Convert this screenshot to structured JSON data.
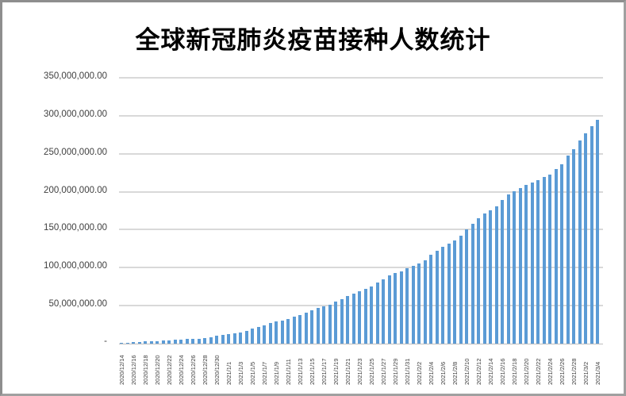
{
  "chart_data": {
    "type": "bar",
    "title": "全球新冠肺炎疫苗接种人数统计",
    "xlabel": "",
    "ylabel": "",
    "legend": null,
    "grid": true,
    "bar_color": "#5B9BD5",
    "gridline_color": "#D9D9D9",
    "axis_line_color": "#BFBFBF",
    "title_color": "#000000",
    "tick_label_color": "#404040",
    "y_axis": {
      "min": 0,
      "max": 350000000,
      "tick_interval": 50000000,
      "tick_labels": [
        "350,000,000.00",
        "300,000,000.00",
        "250,000,000.00",
        "200,000,000.00",
        "150,000,000.00",
        "100,000,000.00",
        "50,000,000.00"
      ],
      "zero_label": "-"
    },
    "x_tick_labels": [
      "2020/12/14",
      "2020/12/16",
      "2020/12/18",
      "2020/12/20",
      "2020/12/22",
      "2020/12/24",
      "2020/12/26",
      "2020/12/28",
      "2020/12/30",
      "2021/1/1",
      "2021/1/3",
      "2021/1/5",
      "2021/1/7",
      "2021/1/9",
      "2021/1/11",
      "2021/1/13",
      "2021/1/15",
      "2021/1/17",
      "2021/1/19",
      "2021/1/21",
      "2021/1/23",
      "2021/1/25",
      "2021/1/27",
      "2021/1/29",
      "2021/1/31",
      "2021/2/2",
      "2021/2/4",
      "2021/2/6",
      "2021/2/8",
      "2021/2/10",
      "2021/2/12",
      "2021/2/14",
      "2021/2/16",
      "2021/2/18",
      "2021/2/20",
      "2021/2/22",
      "2021/2/24",
      "2021/2/26",
      "2021/2/28",
      "2021/3/2",
      "2021/3/4"
    ],
    "categories": [
      "2020/12/14",
      "2020/12/15",
      "2020/12/16",
      "2020/12/17",
      "2020/12/18",
      "2020/12/19",
      "2020/12/20",
      "2020/12/21",
      "2020/12/22",
      "2020/12/23",
      "2020/12/24",
      "2020/12/25",
      "2020/12/26",
      "2020/12/27",
      "2020/12/28",
      "2020/12/29",
      "2020/12/30",
      "2020/12/31",
      "2021/1/1",
      "2021/1/2",
      "2021/1/3",
      "2021/1/4",
      "2021/1/5",
      "2021/1/6",
      "2021/1/7",
      "2021/1/8",
      "2021/1/9",
      "2021/1/10",
      "2021/1/11",
      "2021/1/12",
      "2021/1/13",
      "2021/1/14",
      "2021/1/15",
      "2021/1/16",
      "2021/1/17",
      "2021/1/18",
      "2021/1/19",
      "2021/1/20",
      "2021/1/21",
      "2021/1/22",
      "2021/1/23",
      "2021/1/24",
      "2021/1/25",
      "2021/1/26",
      "2021/1/27",
      "2021/1/28",
      "2021/1/29",
      "2021/1/30",
      "2021/1/31",
      "2021/2/1",
      "2021/2/2",
      "2021/2/3",
      "2021/2/4",
      "2021/2/5",
      "2021/2/6",
      "2021/2/7",
      "2021/2/8",
      "2021/2/9",
      "2021/2/10",
      "2021/2/11",
      "2021/2/12",
      "2021/2/13",
      "2021/2/14",
      "2021/2/15",
      "2021/2/16",
      "2021/2/17",
      "2021/2/18",
      "2021/2/19",
      "2021/2/20",
      "2021/2/21",
      "2021/2/22",
      "2021/2/23",
      "2021/2/24",
      "2021/2/25",
      "2021/2/26",
      "2021/2/27",
      "2021/2/28",
      "2021/3/1",
      "2021/3/2",
      "2021/3/3",
      "2021/3/4"
    ],
    "values": [
      1200000,
      1500000,
      1900000,
      2300000,
      2700000,
      3100000,
      3500000,
      3900000,
      4400000,
      4900000,
      5400000,
      5800000,
      6200000,
      6700000,
      7500000,
      8600000,
      10000000,
      11500000,
      12500000,
      13800000,
      15000000,
      17000000,
      19500000,
      22000000,
      24500000,
      27000000,
      29000000,
      30500000,
      32500000,
      35000000,
      37500000,
      40500000,
      43500000,
      46500000,
      49000000,
      51500000,
      55000000,
      58500000,
      62500000,
      66000000,
      69000000,
      72000000,
      75500000,
      80000000,
      85000000,
      89500000,
      92500000,
      95500000,
      99000000,
      102500000,
      105000000,
      110000000,
      117500000,
      122000000,
      127000000,
      132000000,
      136000000,
      142000000,
      150000000,
      158000000,
      165000000,
      171000000,
      176000000,
      181000000,
      189000000,
      196000000,
      201000000,
      205000000,
      209000000,
      212500000,
      215500000,
      219500000,
      223000000,
      230000000,
      236000000,
      248000000,
      256000000,
      267000000,
      277000000,
      286000000,
      294500000
    ]
  }
}
